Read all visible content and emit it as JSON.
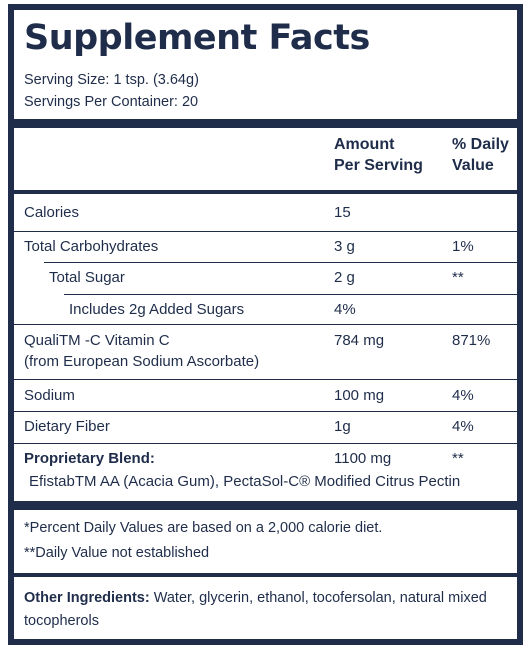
{
  "title": "Supplement Facts",
  "serving_size": "Serving Size: 1 tsp. (3.64g)",
  "servings_per_container": "Servings Per Container: 20",
  "header": {
    "amount_line1": "Amount",
    "amount_line2": "Per Serving",
    "dv_line1": "% Daily",
    "dv_line2": "Value"
  },
  "rows": [
    {
      "name": "Calories",
      "amount": "15",
      "dv": ""
    },
    {
      "name": "Total Carbohydrates",
      "amount": "3 g",
      "dv": "1%"
    },
    {
      "name": "Total Sugar",
      "amount": "2 g",
      "dv": "**"
    },
    {
      "name": "Includes 2g Added Sugars",
      "amount": "4%",
      "dv": ""
    },
    {
      "name": "QualiTM -C Vitamin C",
      "sub": "(from European Sodium Ascorbate)",
      "amount": "784 mg",
      "dv": "871%"
    },
    {
      "name": "Sodium",
      "amount": "100 mg",
      "dv": "4%"
    },
    {
      "name": "Dietary Fiber",
      "amount": "1g",
      "dv": "4%"
    },
    {
      "name": "Proprietary Blend:",
      "sub": "EfistabTM AA (Acacia Gum), PectaSol-C® Modified Citrus Pectin",
      "amount": "1100 mg",
      "dv": "**"
    }
  ],
  "footnotes": [
    "*Percent Daily Values are based on a 2,000 calorie diet.",
    "**Daily Value not established"
  ],
  "other_ingredients": {
    "label": "Other Ingredients:",
    "text": " Water, glycerin, ethanol, tocofersolan, natural mixed tocopherols"
  },
  "colors": {
    "ink": "#1f2d4a",
    "background": "#ffffff"
  }
}
